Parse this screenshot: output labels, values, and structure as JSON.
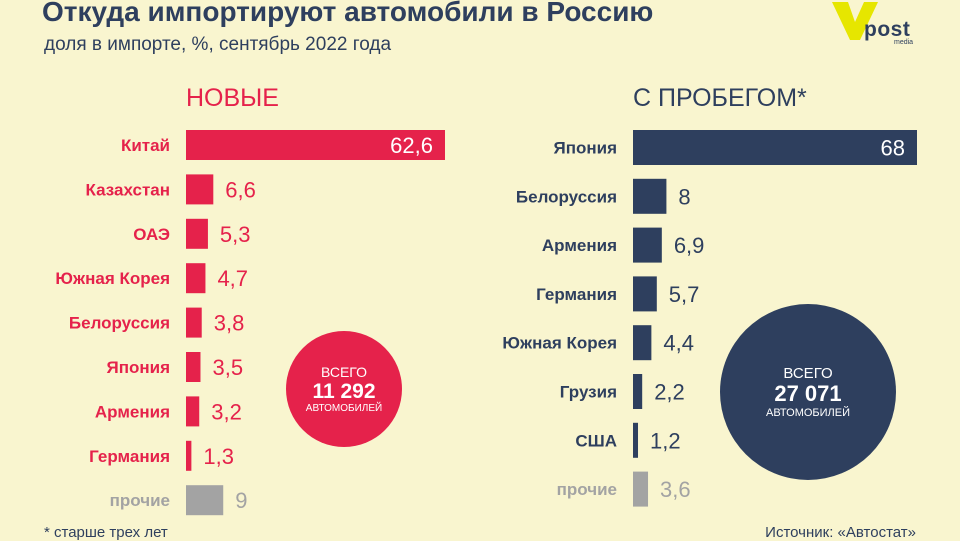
{
  "header": {
    "title": "Откуда импортируют автомобили в Россию",
    "subtitle": "доля в импорте, %, сентябрь 2022 года"
  },
  "logo": {
    "word": "post",
    "sub": "media"
  },
  "colors": {
    "new": "#e5224b",
    "used": "#2e3f5e",
    "other": "#a3a3a3",
    "background": "#f9f5cf"
  },
  "chart_data": [
    {
      "type": "bar",
      "orientation": "horizontal",
      "title": "НОВЫЕ",
      "categories": [
        "Китай",
        "Казахстан",
        "ОАЭ",
        "Южная Корея",
        "Белоруссия",
        "Япония",
        "Армения",
        "Германия",
        "прочие"
      ],
      "values": [
        62.6,
        6.6,
        5.3,
        4.7,
        3.8,
        3.5,
        3.2,
        1.3,
        9
      ],
      "labels": [
        "62,6",
        "6,6",
        "5,3",
        "4,7",
        "3,8",
        "3,5",
        "3,2",
        "1,3",
        "9"
      ],
      "highlight": "прочие",
      "total": {
        "line1": "ВСЕГО",
        "value": "11 292",
        "line3": "АВТОМОБИЛЕЙ"
      }
    },
    {
      "type": "bar",
      "orientation": "horizontal",
      "title": "С ПРОБЕГОМ*",
      "categories": [
        "Япония",
        "Белоруссия",
        "Армения",
        "Германия",
        "Южная Корея",
        "Грузия",
        "США",
        "прочие"
      ],
      "values": [
        68,
        8,
        6.9,
        5.7,
        4.4,
        2.2,
        1.2,
        3.6
      ],
      "labels": [
        "68",
        "8",
        "6,9",
        "5,7",
        "4,4",
        "2,2",
        "1,2",
        "3,6"
      ],
      "highlight": "прочие",
      "total": {
        "line1": "ВСЕГО",
        "value": "27 071",
        "line3": "АВТОМОБИЛЕЙ"
      }
    }
  ],
  "footer": {
    "footnote": "* старше трех лет",
    "source": "Источник: «Автостат»"
  }
}
